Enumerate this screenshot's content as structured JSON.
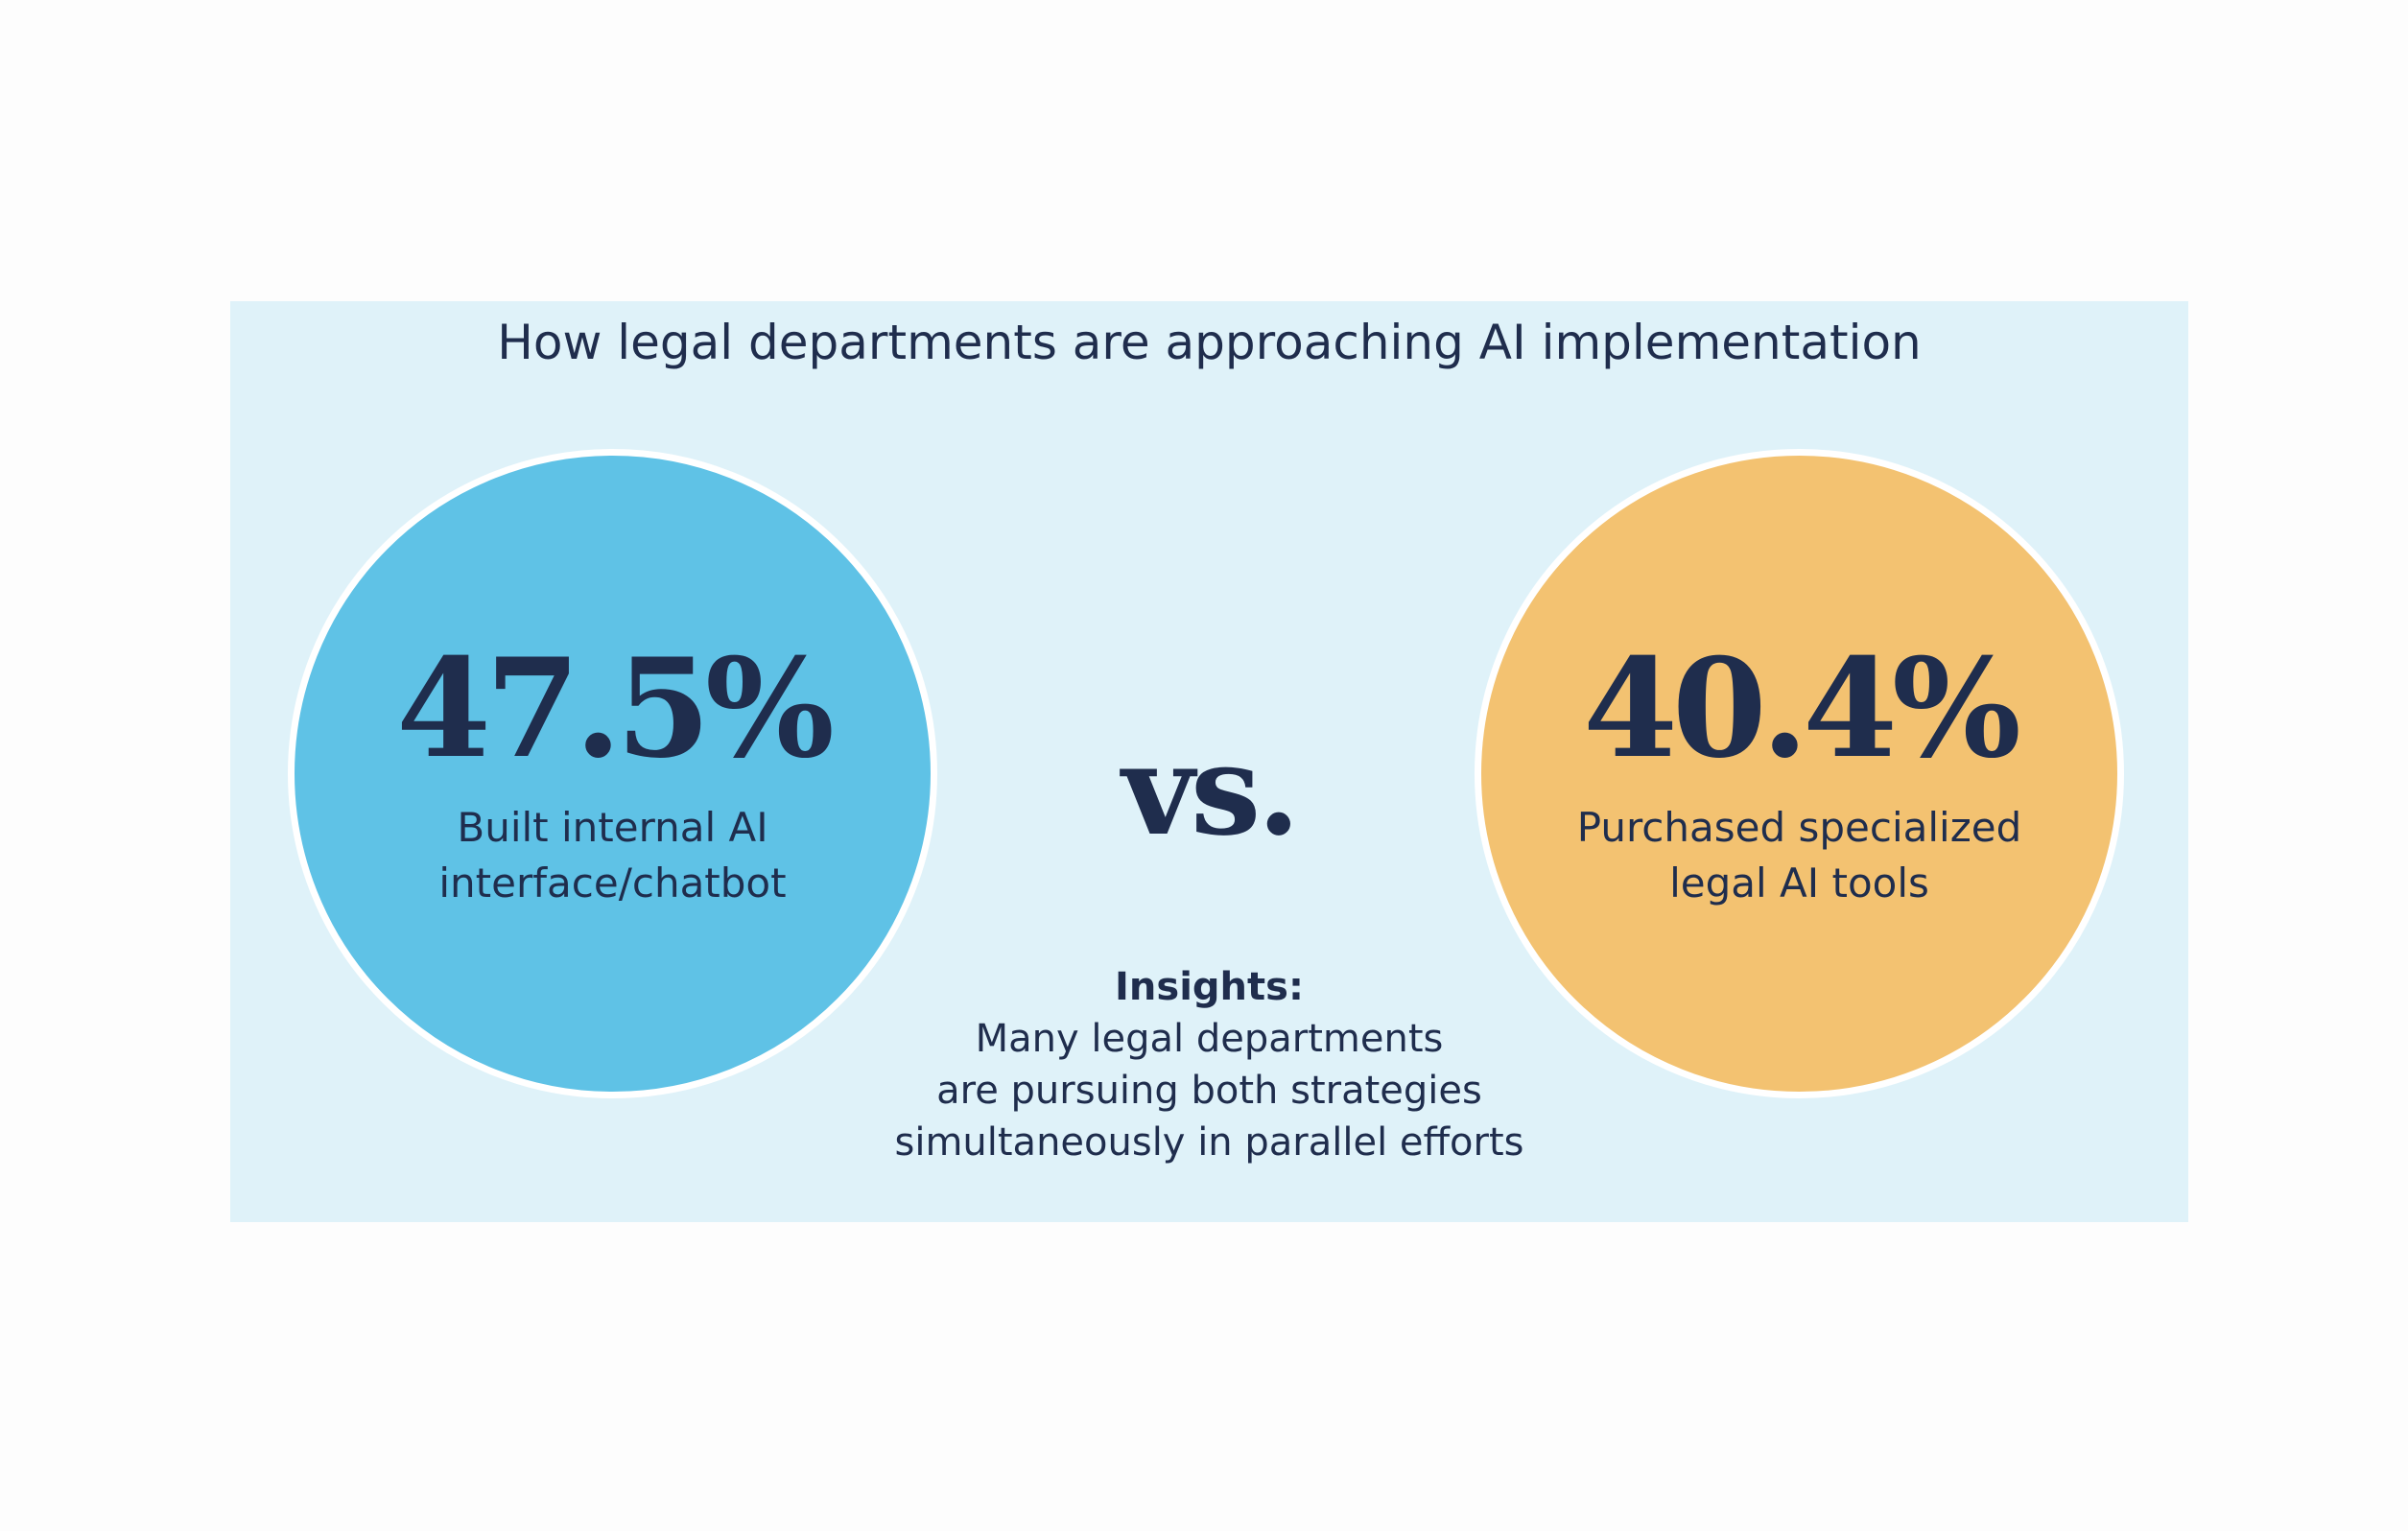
{
  "title": "How legal departments are approaching AI implementation",
  "left_stat": {
    "value": "47.5%",
    "label": "Built internal AI interface/chatbot",
    "color": "#5fc2e6"
  },
  "right_stat": {
    "value": "40.4%",
    "label": "Purchased specialized legal AI tools",
    "color": "#f3c271"
  },
  "vs_label": "vs.",
  "insights": {
    "heading": "Insights:",
    "lines": [
      "Many legal departments",
      "are pursuing both strategies",
      "simultaneously in parallel efforts"
    ]
  },
  "colors": {
    "panel_background": "#dff2f9",
    "text": "#1f2d4d",
    "circle_border": "#ffffff"
  }
}
